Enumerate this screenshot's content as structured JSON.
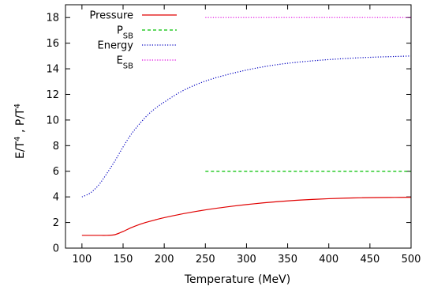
{
  "chart_data": {
    "type": "line",
    "title": "",
    "xlabel": "Temperature (MeV)",
    "ylabel": "E/T^4 , P/T^4",
    "xlim": [
      80,
      500
    ],
    "ylim": [
      0,
      19
    ],
    "xticks": [
      100,
      150,
      200,
      250,
      300,
      350,
      400,
      450,
      500
    ],
    "yticks": [
      0,
      2,
      4,
      6,
      8,
      10,
      12,
      14,
      16,
      18
    ],
    "grid": false,
    "legend_position": "top-left",
    "series": [
      {
        "name": "Pressure",
        "legend_main": "Pressure",
        "legend_sub": "",
        "color": "#e00000",
        "dash": "solid",
        "x": [
          100,
          110,
          120,
          130,
          140,
          150,
          160,
          170,
          180,
          190,
          200,
          220,
          240,
          260,
          280,
          300,
          320,
          340,
          360,
          380,
          400,
          420,
          440,
          460,
          480,
          500
        ],
        "y": [
          1.0,
          1.0,
          1.0,
          1.0,
          1.05,
          1.3,
          1.6,
          1.85,
          2.05,
          2.22,
          2.38,
          2.65,
          2.88,
          3.08,
          3.25,
          3.4,
          3.53,
          3.64,
          3.73,
          3.8,
          3.86,
          3.9,
          3.93,
          3.95,
          3.96,
          3.97
        ]
      },
      {
        "name": "P_SB",
        "legend_main": "P",
        "legend_sub": "SB",
        "color": "#00c000",
        "dash": "dashed",
        "x": [
          250,
          500
        ],
        "y": [
          6,
          6
        ]
      },
      {
        "name": "Energy",
        "legend_main": "Energy",
        "legend_sub": "",
        "color": "#0000c0",
        "dash": "dotted",
        "x": [
          100,
          110,
          120,
          130,
          140,
          150,
          160,
          170,
          180,
          190,
          200,
          220,
          240,
          260,
          280,
          300,
          320,
          340,
          360,
          380,
          400,
          420,
          440,
          460,
          480,
          500
        ],
        "y": [
          4.0,
          4.3,
          4.9,
          5.8,
          6.8,
          7.9,
          8.9,
          9.7,
          10.4,
          10.95,
          11.4,
          12.2,
          12.8,
          13.25,
          13.6,
          13.9,
          14.15,
          14.35,
          14.5,
          14.62,
          14.72,
          14.8,
          14.87,
          14.92,
          14.96,
          15.0
        ]
      },
      {
        "name": "E_SB",
        "legend_main": "E",
        "legend_sub": "SB",
        "color": "#e000e0",
        "dash": "dotted",
        "x": [
          250,
          500
        ],
        "y": [
          18,
          18
        ]
      }
    ]
  }
}
